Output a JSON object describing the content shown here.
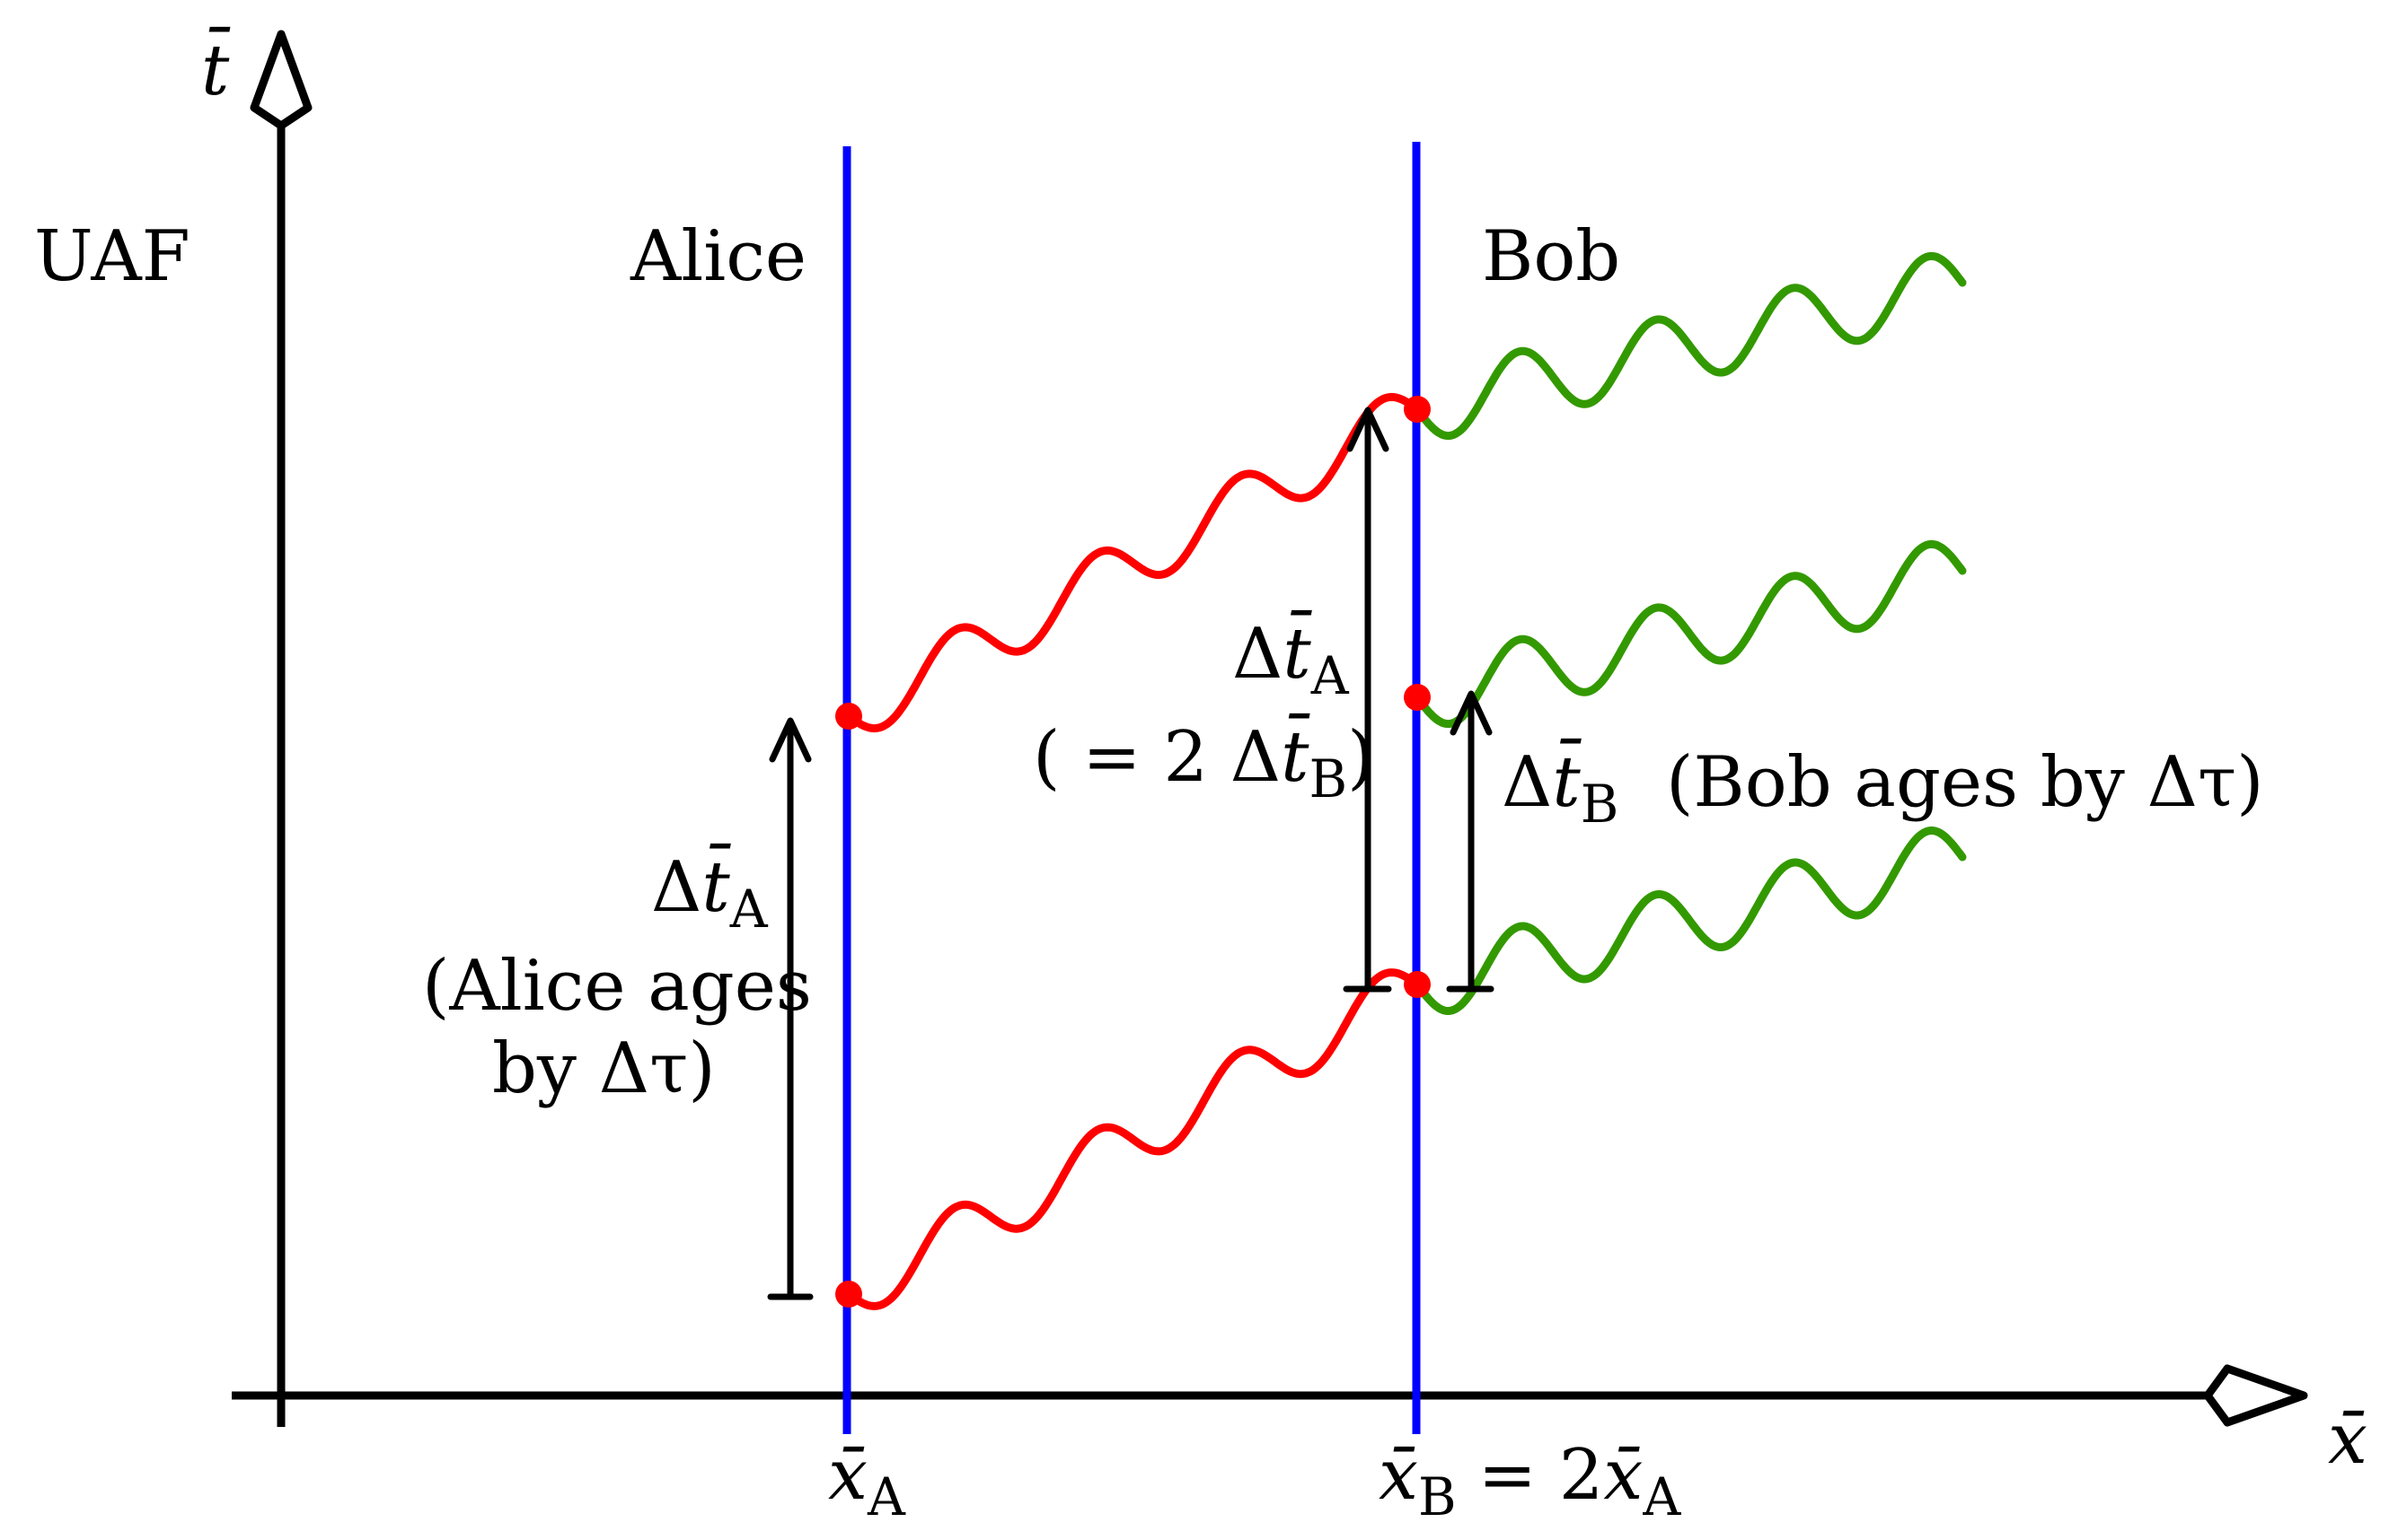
{
  "labels": {
    "t_axis": "t̄",
    "x_axis": "x̄",
    "frame": "UAF",
    "alice": "Alice",
    "bob": "Bob",
    "x_A_sym": "x̄",
    "x_A_sub": "A",
    "x_B_sym": "x̄",
    "x_B_sub": "B",
    "x_B_eq": "= 2",
    "x_B_rhs_sym": "x̄",
    "x_B_rhs_sub": "A",
    "alice_interval_delta": "Δ",
    "alice_interval_sym": "t̄",
    "alice_interval_sub": "A",
    "alice_ages_1": "(Alice ages",
    "alice_ages_2": "by Δτ)",
    "bob_dtA_delta": "Δ",
    "bob_dtA_sym": "t̄",
    "bob_dtA_sub": "A",
    "bob_dtA_eq_open": "( = 2 Δ",
    "bob_dtA_eq_sym": "t̄",
    "bob_dtA_eq_sub": "B",
    "bob_dtA_eq_close": ")",
    "bob_dtB_delta": "Δ",
    "bob_dtB_sym": "t̄",
    "bob_dtB_sub": "B",
    "bob_ages": "(Bob ages by Δτ)"
  },
  "colors": {
    "axes": "#000000",
    "worldline": "#0000ff",
    "signal_emitted": "#ff0000",
    "signal_received": "#339900",
    "event": "#ff0000",
    "interval": "#000000"
  }
}
